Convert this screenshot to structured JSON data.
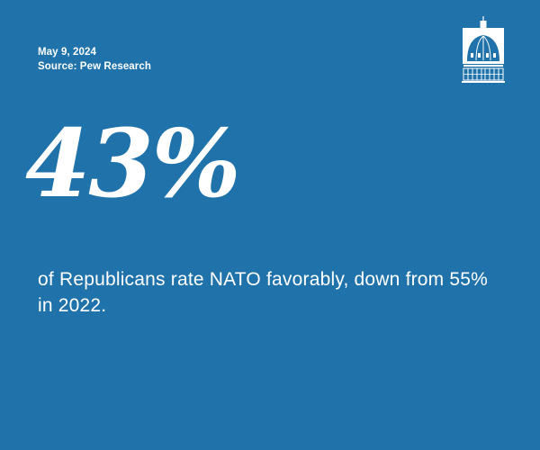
{
  "meta": {
    "date": "May 9, 2024",
    "source": "Source: Pew Research"
  },
  "logo": {
    "icon": "capitol-dome-icon"
  },
  "stat": {
    "value": "43%",
    "caption": "of Republicans rate NATO favorably, down from 55% in 2022."
  },
  "colors": {
    "background": "#1f72aa",
    "text": "#ffffff"
  }
}
